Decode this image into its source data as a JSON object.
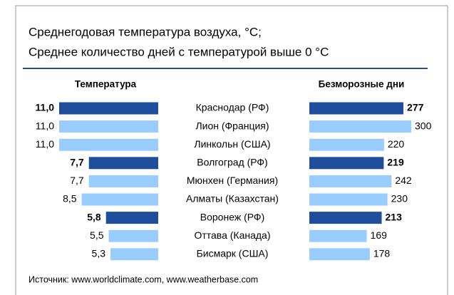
{
  "chart_data": {
    "type": "bar",
    "orientation": "horizontal",
    "title": "Среднегодовая температура воздуха, °C;",
    "subtitle": "Среднее количество дней с температурой выше 0 °C",
    "categories": [
      "Краснодар (РФ)",
      "Лион (Франция)",
      "Линкольн (США)",
      "Волгоград (РФ)",
      "Мюнхен (Германия)",
      "Алматы (Казахстан)",
      "Воронеж (РФ)",
      "Оттава (Канада)",
      "Бисмарк (США)"
    ],
    "highlight": [
      true,
      false,
      false,
      true,
      false,
      false,
      true,
      false,
      false
    ],
    "color": "#99ccff",
    "highlight_color": "#1f4e9c",
    "series": [
      {
        "name": "Температура",
        "values": [
          11.0,
          11.0,
          11.0,
          7.7,
          7.7,
          8.5,
          5.8,
          5.5,
          5.3
        ],
        "value_labels": [
          "11,0",
          "11,0",
          "11,0",
          "7,7",
          "7,7",
          "8,5",
          "5,8",
          "5,5",
          "5,3"
        ],
        "xlim": [
          0,
          11
        ]
      },
      {
        "name": "Безморозные дни",
        "values": [
          277,
          300,
          220,
          219,
          242,
          230,
          213,
          169,
          178
        ],
        "xlim": [
          0,
          300
        ]
      }
    ],
    "source": "Источник: www.worldclimate.com, www.weatherbase.com"
  }
}
